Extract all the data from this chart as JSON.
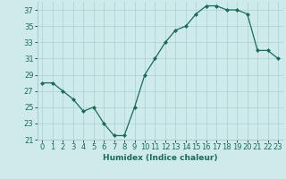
{
  "x": [
    0,
    1,
    2,
    3,
    4,
    5,
    6,
    7,
    8,
    9,
    10,
    11,
    12,
    13,
    14,
    15,
    16,
    17,
    18,
    19,
    20,
    21,
    22,
    23
  ],
  "y": [
    28,
    28,
    27,
    26,
    24.5,
    25,
    23,
    21.5,
    21.5,
    25,
    29,
    31,
    33,
    34.5,
    35,
    36.5,
    37.5,
    37.5,
    37,
    37,
    36.5,
    32,
    32,
    31
  ],
  "xlabel": "Humidex (Indice chaleur)",
  "xlim_min": -0.5,
  "xlim_max": 23.5,
  "ylim_min": 21,
  "ylim_max": 38,
  "yticks": [
    21,
    23,
    25,
    27,
    29,
    31,
    33,
    35,
    37
  ],
  "xticks": [
    0,
    1,
    2,
    3,
    4,
    5,
    6,
    7,
    8,
    9,
    10,
    11,
    12,
    13,
    14,
    15,
    16,
    17,
    18,
    19,
    20,
    21,
    22,
    23
  ],
  "line_color": "#1a6b5a",
  "marker": "D",
  "marker_size": 2,
  "bg_color": "#ceeaea",
  "grid_color": "#aacfcf",
  "label_fontsize": 6.5,
  "tick_fontsize": 6
}
